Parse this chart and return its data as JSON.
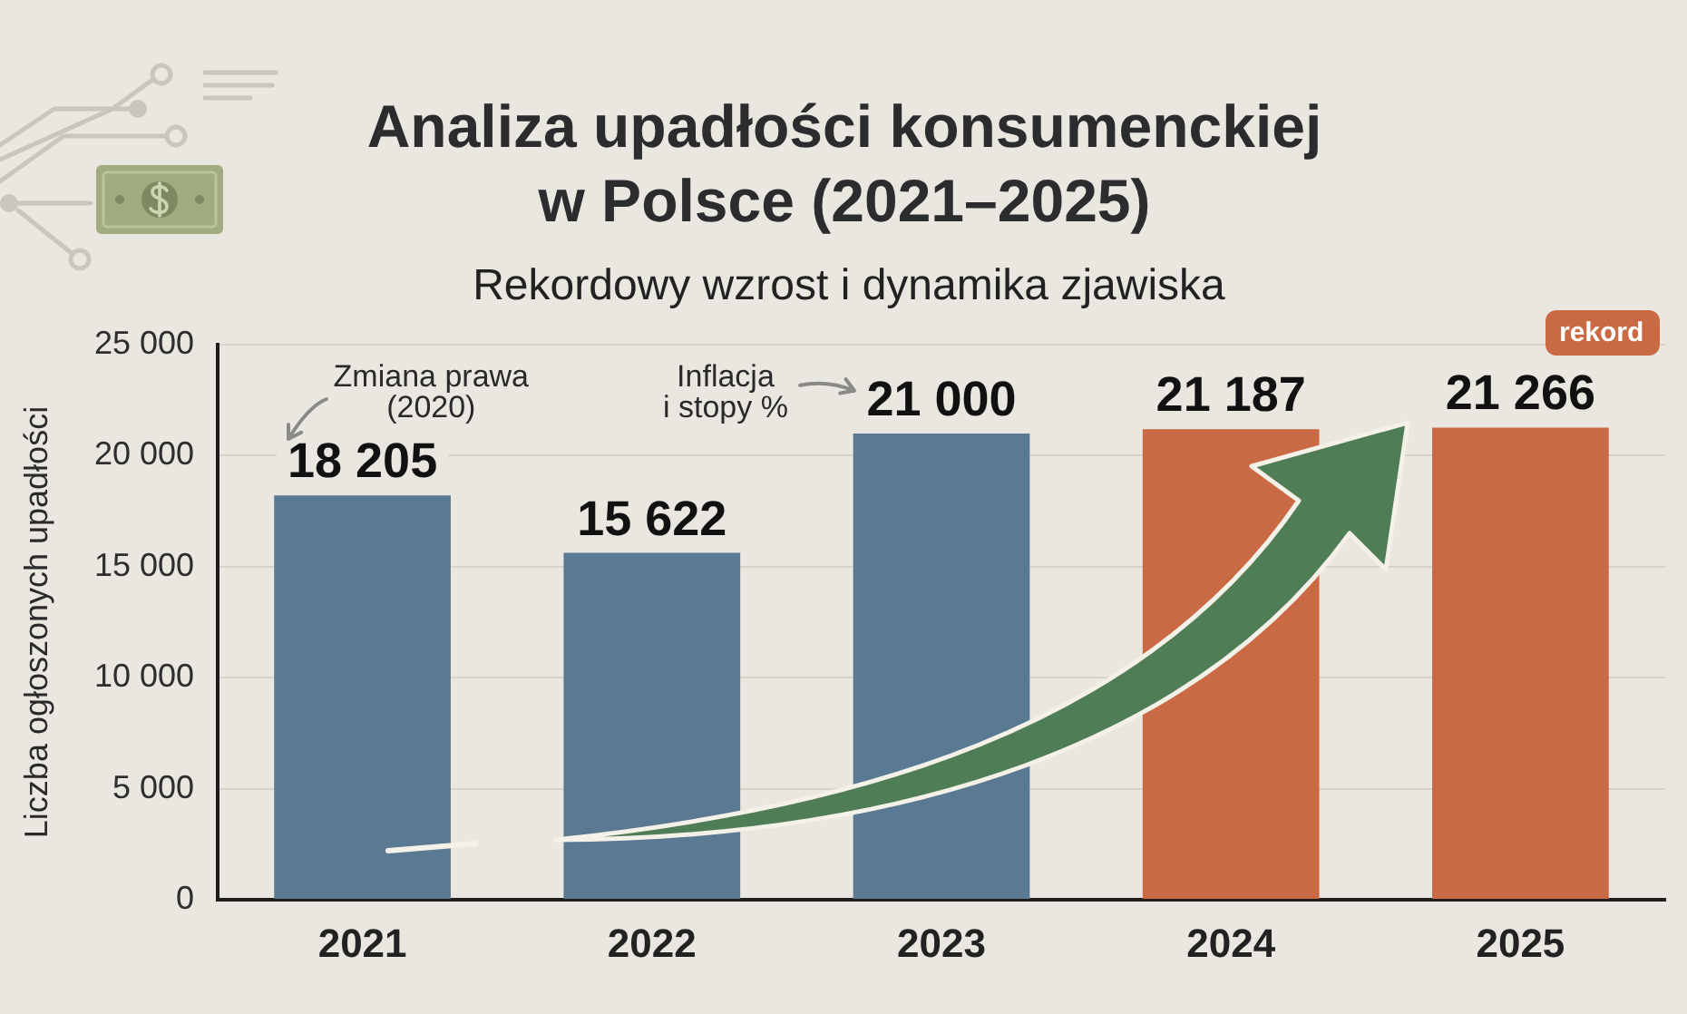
{
  "chart_data": {
    "type": "bar",
    "title": "Analiza upadłości konsumenckiej w Polsce (2021–2025)",
    "subtitle": "Rekordowy wzrost i dynamika zjawiska",
    "ylabel": "Liczba ogłoszonych upadłości",
    "categories": [
      "2021",
      "2022",
      "2023",
      "2024",
      "2025"
    ],
    "values": [
      18205,
      15622,
      21000,
      21187,
      21266
    ],
    "colors": [
      "#5a7a94",
      "#5a7a94",
      "#5a7a94",
      "#c96a45",
      "#c96a45"
    ],
    "value_labels": [
      "18 205",
      "15 622",
      "21 000",
      "21 187",
      "21 266"
    ],
    "ylim": [
      0,
      25000
    ],
    "yticks": [
      0,
      {
        "value": 5000,
        "label": "5 000"
      },
      {
        "value": 10000,
        "label": "10 000"
      },
      {
        "value": 15000,
        "label": "15 000"
      },
      {
        "value": 20000,
        "label": "20 000"
      },
      {
        "value": 25000,
        "label": "25 000"
      }
    ],
    "grid": "y",
    "annotations": [
      {
        "text": "Zmiana prawa (2020)",
        "x": "2021",
        "y": 18205
      },
      "Inflacja i stopy %",
      "rekord"
    ]
  }
}
